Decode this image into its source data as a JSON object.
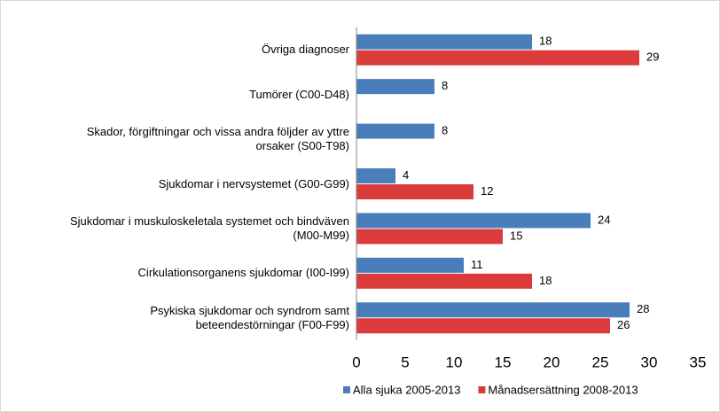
{
  "chart_data": {
    "type": "bar",
    "orientation": "horizontal",
    "categories": [
      "Övriga diagnoser",
      "Tumörer (C00-D48)",
      "Skador, förgiftningar och vissa andra följder av yttre\norsaker (S00-T98)",
      "Sjukdomar i nervsystemet (G00-G99)",
      "Sjukdomar i muskuloskeletala systemet och bindväven\n(M00-M99)",
      "Cirkulationsorganens sjukdomar (I00-I99)",
      "Psykiska sjukdomar och syndrom samt\nbeteendestörningar (F00-F99)"
    ],
    "series": [
      {
        "name": "Alla sjuka 2005-2013",
        "color": "#4a7ebb",
        "values": [
          18,
          8,
          8,
          4,
          24,
          11,
          28
        ]
      },
      {
        "name": "Månadsersättning 2008-2013",
        "color": "#dc3b3b",
        "values": [
          29,
          null,
          null,
          12,
          15,
          18,
          26
        ]
      }
    ],
    "xlim": [
      0,
      35
    ],
    "xticks": [
      0,
      5,
      10,
      15,
      20,
      25,
      30,
      35
    ],
    "grid": false,
    "legend": "bottom"
  }
}
